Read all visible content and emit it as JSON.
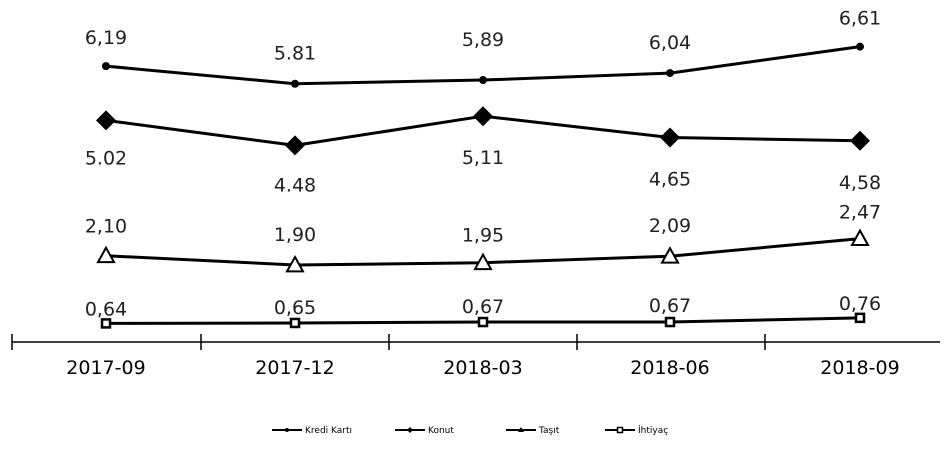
{
  "chart_data": {
    "type": "line",
    "categories": [
      "2017-09",
      "2017-12",
      "2018-03",
      "2018-06",
      "2018-09"
    ],
    "series": [
      {
        "name": "Kredi Kartı",
        "marker": "circle",
        "values": [
          6.19,
          5.81,
          5.89,
          6.04,
          6.61
        ],
        "labels": [
          "6,19",
          "5.81",
          "5,89",
          "6,04",
          "6,61"
        ]
      },
      {
        "name": "Konut",
        "marker": "diamond",
        "values": [
          5.02,
          4.48,
          5.11,
          4.65,
          4.58
        ],
        "labels": [
          "5.02",
          "4.48",
          "5,11",
          "4,65",
          "4,58"
        ]
      },
      {
        "name": "Taşıt",
        "marker": "triangle",
        "values": [
          2.1,
          1.9,
          1.95,
          2.09,
          2.47
        ],
        "labels": [
          "2,10",
          "1,90",
          "1,95",
          "2,09",
          "2,47"
        ]
      },
      {
        "name": "İhtiyaç",
        "marker": "square",
        "values": [
          0.64,
          0.65,
          0.67,
          0.67,
          0.76
        ],
        "labels": [
          "0,64",
          "0,65",
          "0,67",
          "0,67",
          "0,76"
        ]
      }
    ],
    "color": "#000000",
    "grid": false,
    "legend": "bottom"
  }
}
